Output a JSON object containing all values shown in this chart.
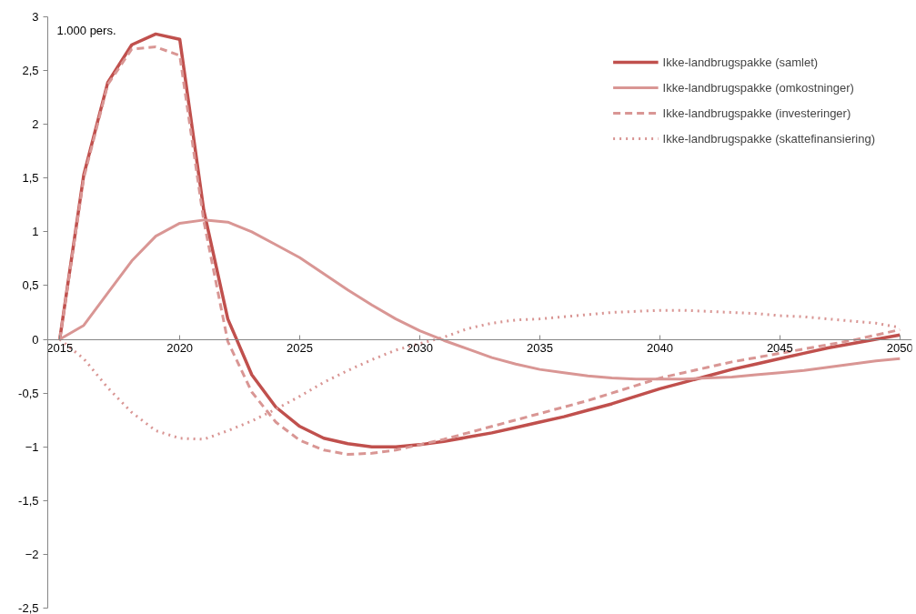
{
  "chart_data": {
    "type": "line",
    "ylabel": "1.000 pers.",
    "x": [
      2015,
      2016,
      2017,
      2018,
      2019,
      2020,
      2021,
      2022,
      2023,
      2024,
      2025,
      2026,
      2027,
      2028,
      2029,
      2030,
      2031,
      2032,
      2033,
      2034,
      2035,
      2036,
      2037,
      2038,
      2039,
      2040,
      2041,
      2042,
      2043,
      2044,
      2045,
      2046,
      2047,
      2048,
      2049,
      2050
    ],
    "xlim": [
      2014.5,
      2050.5
    ],
    "xticks": [
      2015,
      2020,
      2025,
      2030,
      2035,
      2040,
      2045,
      2050
    ],
    "ylim": [
      -2.5,
      3
    ],
    "yticks": [
      {
        "value": -2.5,
        "label": "-2,5"
      },
      -2,
      {
        "value": -1.5,
        "label": "-1,5"
      },
      -1,
      {
        "value": -0.5,
        "label": "-0,5"
      },
      0,
      {
        "value": 0.5,
        "label": "0,5"
      },
      1,
      {
        "value": 1.5,
        "label": "1,5"
      },
      2,
      {
        "value": 2.5,
        "label": "2,5"
      },
      3
    ],
    "grid": false,
    "legend": "top right",
    "marker": "none",
    "series": [
      {
        "name": "Ikke-landbrugspakke (samlet)",
        "color": "#c0504d",
        "line_style": "solid",
        "values": [
          0,
          1.53,
          2.39,
          2.74,
          2.84,
          2.79,
          1.2,
          0.19,
          -0.33,
          -0.63,
          -0.81,
          -0.92,
          -0.97,
          -1.0,
          -1.0,
          -0.98,
          -0.95,
          -0.91,
          -0.87,
          -0.82,
          -0.77,
          -0.72,
          -0.66,
          -0.6,
          -0.53,
          -0.46,
          -0.4,
          -0.34,
          -0.28,
          -0.23,
          -0.18,
          -0.13,
          -0.08,
          -0.04,
          0.0,
          0.04
        ]
      },
      {
        "name": "Ikke-landbrugspakke (omkostninger)",
        "color": "#d99694",
        "line_style": "solid",
        "values": [
          0,
          0.13,
          0.43,
          0.73,
          0.96,
          1.08,
          1.11,
          1.09,
          1.0,
          0.88,
          0.76,
          0.61,
          0.46,
          0.32,
          0.19,
          0.08,
          -0.01,
          -0.09,
          -0.17,
          -0.23,
          -0.28,
          -0.31,
          -0.34,
          -0.36,
          -0.37,
          -0.37,
          -0.37,
          -0.36,
          -0.35,
          -0.33,
          -0.31,
          -0.29,
          -0.26,
          -0.23,
          -0.2,
          -0.18
        ]
      },
      {
        "name": "Ikke-landbrugspakke (investeringer)",
        "color": "#d99694",
        "line_style": "dashed",
        "values": [
          0,
          1.5,
          2.37,
          2.7,
          2.72,
          2.64,
          1.1,
          -0.02,
          -0.49,
          -0.77,
          -0.94,
          -1.03,
          -1.07,
          -1.06,
          -1.03,
          -0.98,
          -0.93,
          -0.87,
          -0.81,
          -0.75,
          -0.69,
          -0.63,
          -0.57,
          -0.5,
          -0.43,
          -0.36,
          -0.31,
          -0.26,
          -0.21,
          -0.17,
          -0.13,
          -0.09,
          -0.05,
          -0.01,
          0.04,
          0.09
        ]
      },
      {
        "name": "Ikke-landbrugspakke (skattefinansiering)",
        "color": "#d99694",
        "line_style": "dotted",
        "values": [
          0,
          -0.18,
          -0.45,
          -0.68,
          -0.85,
          -0.92,
          -0.93,
          -0.85,
          -0.76,
          -0.65,
          -0.53,
          -0.4,
          -0.29,
          -0.19,
          -0.1,
          -0.04,
          0.02,
          0.1,
          0.15,
          0.18,
          0.19,
          0.21,
          0.23,
          0.25,
          0.26,
          0.27,
          0.27,
          0.26,
          0.25,
          0.24,
          0.22,
          0.21,
          0.19,
          0.17,
          0.15,
          0.11
        ]
      }
    ]
  }
}
